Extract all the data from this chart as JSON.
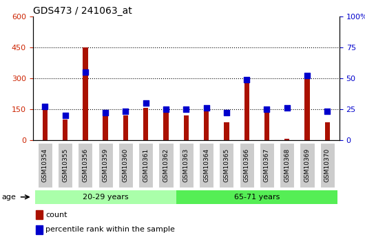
{
  "title": "GDS473 / 241063_at",
  "categories": [
    "GSM10354",
    "GSM10355",
    "GSM10356",
    "GSM10359",
    "GSM10360",
    "GSM10361",
    "GSM10362",
    "GSM10363",
    "GSM10364",
    "GSM10365",
    "GSM10366",
    "GSM10367",
    "GSM10368",
    "GSM10369",
    "GSM10370"
  ],
  "count_values": [
    145,
    100,
    450,
    135,
    120,
    155,
    140,
    120,
    145,
    85,
    290,
    135,
    5,
    320,
    85
  ],
  "percentile_values": [
    27,
    20,
    55,
    22,
    23,
    30,
    25,
    25,
    26,
    22,
    49,
    25,
    26,
    52,
    23
  ],
  "bar_color": "#AA1100",
  "square_color": "#0000CC",
  "left_ylim": [
    0,
    600
  ],
  "right_ylim": [
    0,
    100
  ],
  "left_yticks": [
    0,
    150,
    300,
    450,
    600
  ],
  "right_yticks": [
    0,
    25,
    50,
    75,
    100
  ],
  "right_yticklabels": [
    "0",
    "25",
    "50",
    "75",
    "100%"
  ],
  "group1_label": "20-29 years",
  "group2_label": "65-71 years",
  "group1_indices": [
    0,
    1,
    2,
    3,
    4,
    5,
    6
  ],
  "group2_indices": [
    7,
    8,
    9,
    10,
    11,
    12,
    13,
    14
  ],
  "age_label": "age",
  "legend_count_label": "count",
  "legend_pct_label": "percentile rank within the sample",
  "group_bg_color1": "#AAFFAA",
  "group_bg_color2": "#55EE55",
  "tick_bg_color": "#CCCCCC",
  "bar_width": 0.25,
  "square_size": 28,
  "grid_color": "#000000",
  "title_fontsize": 10,
  "tick_label_fontsize": 6.5
}
